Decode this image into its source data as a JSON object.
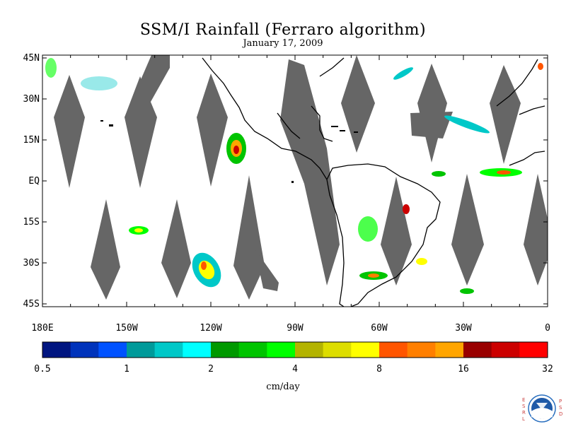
{
  "title": "SSM/I Rainfall (Ferraro algorithm)",
  "subtitle": "January 17, 2009",
  "lat_labels": [
    "45N",
    "30N",
    "15N",
    "EQ",
    "15S",
    "30S",
    "45S"
  ],
  "lon_labels": [
    "180E",
    "150W",
    "120W",
    "90W",
    "60W",
    "30W",
    "0"
  ],
  "colorbar": {
    "colors": [
      "#001580",
      "#0033bb",
      "#0052ff",
      "#009a9a",
      "#00c8c8",
      "#00ffff",
      "#009900",
      "#00c400",
      "#00ff00",
      "#b3b300",
      "#dddd00",
      "#ffff00",
      "#ff5500",
      "#ff7f00",
      "#ffa500",
      "#990000",
      "#cc0000",
      "#ff0000"
    ],
    "tick_labels": [
      "0.5",
      "1",
      "2",
      "4",
      "8",
      "16",
      "32"
    ]
  },
  "units": "cm/day",
  "logo": {
    "name": "NOAA",
    "left_letters": [
      "E",
      "S",
      "R",
      "L"
    ],
    "right_letters": [
      "P",
      "S",
      "D"
    ]
  },
  "colors": {
    "swath_gap": "#666666",
    "land_outline": "#000000",
    "background": "#ffffff"
  }
}
